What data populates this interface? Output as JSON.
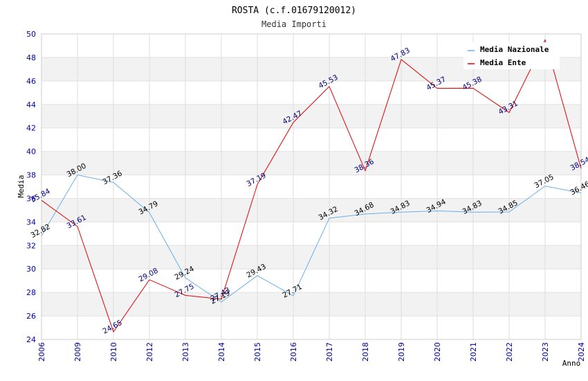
{
  "chart_data": {
    "type": "line",
    "title": "ROSTA (c.f.01679120012)",
    "subtitle": "Media Importi",
    "xlabel": "Anno",
    "ylabel": "Media",
    "ylim": [
      24,
      50
    ],
    "yticks": [
      "24",
      "26",
      "28",
      "30",
      "32",
      "34",
      "36",
      "38",
      "40",
      "42",
      "44",
      "46",
      "48",
      "50"
    ],
    "categories": [
      "2006",
      "2009",
      "2010",
      "2012",
      "2013",
      "2014",
      "2015",
      "2016",
      "2017",
      "2018",
      "2019",
      "2020",
      "2021",
      "2022",
      "2023",
      "2024"
    ],
    "series": [
      {
        "name": "Media Nazionale",
        "color": "#6ab0e8",
        "values": [
          32.82,
          38.0,
          37.36,
          34.79,
          29.24,
          27.19,
          29.43,
          27.71,
          34.32,
          34.68,
          34.83,
          34.94,
          34.83,
          34.85,
          37.05,
          36.46
        ],
        "labels": [
          "32.82",
          "38.00",
          "37.36",
          "34.79",
          "29.24",
          "27.19",
          "29.43",
          "27.71",
          "34.32",
          "34.68",
          "34.83",
          "34.94",
          "34.83",
          "34.85",
          "37.05",
          "36.46"
        ]
      },
      {
        "name": "Media Ente",
        "color": "#e00000",
        "values": [
          35.84,
          33.61,
          24.65,
          29.08,
          27.75,
          27.43,
          37.19,
          42.47,
          45.53,
          38.36,
          47.83,
          45.37,
          45.38,
          43.31,
          49.5,
          38.54
        ],
        "labels": [
          "35.84",
          "33.61",
          "24.65",
          "29.08",
          "27.75",
          "27.43",
          "37.19",
          "42.47",
          "45.53",
          "38.36",
          "47.83",
          "45.37",
          "45.38",
          "43.31",
          "",
          "38.54"
        ]
      }
    ],
    "legend_position": "top-right",
    "grid": true
  }
}
